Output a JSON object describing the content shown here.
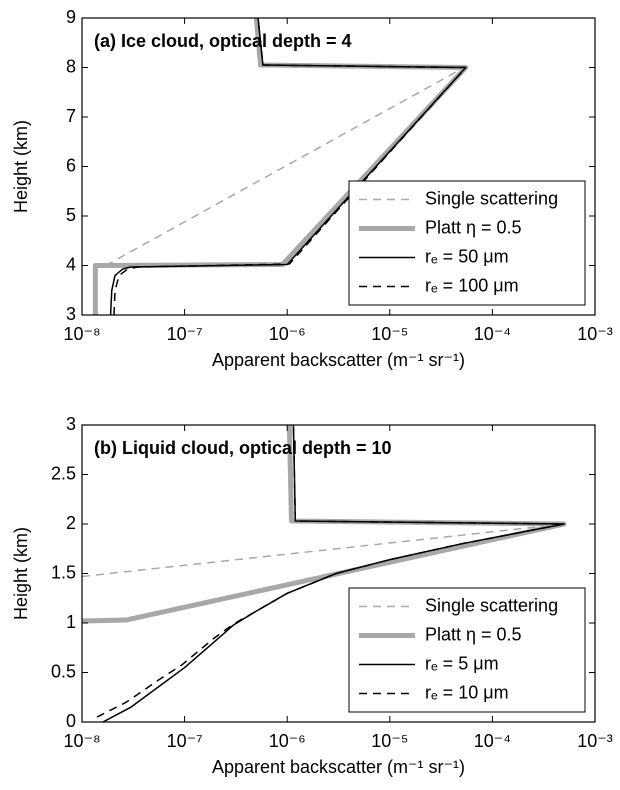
{
  "chart_data": [
    {
      "type": "line",
      "title": "(a) Ice cloud, optical depth = 4",
      "xlabel": "Apparent backscatter (m⁻¹ sr⁻¹)",
      "ylabel": "Height (km)",
      "xscale": "log",
      "xlim": [
        1e-08,
        0.001
      ],
      "ylim": [
        3,
        9
      ],
      "xticks": [
        {
          "value": 1e-08,
          "label": "10⁻⁸"
        },
        {
          "value": 1e-07,
          "label": "10⁻⁷"
        },
        {
          "value": 1e-06,
          "label": "10⁻⁶"
        },
        {
          "value": 1e-05,
          "label": "10⁻⁵"
        },
        {
          "value": 0.0001,
          "label": "10⁻⁴"
        },
        {
          "value": 0.001,
          "label": "10⁻³"
        }
      ],
      "yticks": [
        3,
        4,
        5,
        6,
        7,
        8,
        9
      ],
      "grid": false,
      "legend": "lower right",
      "series": [
        {
          "name": "Single scattering",
          "color": "#a8a8a8",
          "linestyle": "dashed",
          "linewidth": 1.5,
          "x": [
            1.7e-08,
            5.3e-05
          ],
          "values": [
            4,
            8
          ]
        },
        {
          "name": "Platt η = 0.5",
          "color": "#a8a8a8",
          "linestyle": "solid",
          "linewidth": 5,
          "x": [
            1.35e-08,
            1.35e-08,
            9e-07,
            5.5e-05,
            5.5e-07,
            5e-07
          ],
          "values": [
            3,
            4,
            4.02,
            8,
            8.05,
            9
          ]
        },
        {
          "name": "rₑ = 50 μm",
          "color": "#000000",
          "linestyle": "solid",
          "linewidth": 1.5,
          "x": [
            1.9e-08,
            1.95e-08,
            2.1e-08,
            2.5e-08,
            3e-08,
            1e-06,
            5.5e-05,
            5.8e-07,
            5.2e-07
          ],
          "values": [
            3,
            3.5,
            3.8,
            3.93,
            3.97,
            4.02,
            8,
            8.05,
            9
          ]
        },
        {
          "name": "rₑ = 100 μm",
          "color": "#000000",
          "linestyle": "dashed",
          "linewidth": 1.5,
          "x": [
            2.05e-08,
            2.1e-08,
            2.3e-08,
            2.8e-08,
            3.5e-08,
            1.05e-06,
            5.5e-05,
            5.8e-07,
            5.2e-07
          ],
          "values": [
            3,
            3.5,
            3.8,
            3.93,
            3.97,
            4.03,
            8,
            8.05,
            9
          ]
        }
      ]
    },
    {
      "type": "line",
      "title": "(b) Liquid cloud, optical depth = 10",
      "xlabel": "Apparent backscatter (m⁻¹ sr⁻¹)",
      "ylabel": "Height (km)",
      "xscale": "log",
      "xlim": [
        1e-08,
        0.001
      ],
      "ylim": [
        0,
        3
      ],
      "xticks": [
        {
          "value": 1e-08,
          "label": "10⁻⁸"
        },
        {
          "value": 1e-07,
          "label": "10⁻⁷"
        },
        {
          "value": 1e-06,
          "label": "10⁻⁶"
        },
        {
          "value": 1e-05,
          "label": "10⁻⁵"
        },
        {
          "value": 0.0001,
          "label": "10⁻⁴"
        },
        {
          "value": 0.001,
          "label": "10⁻³"
        }
      ],
      "yticks": [
        0,
        0.5,
        1,
        1.5,
        2,
        2.5,
        3
      ],
      "grid": false,
      "legend": "lower right",
      "series": [
        {
          "name": "Single scattering",
          "color": "#a8a8a8",
          "linestyle": "dashed",
          "linewidth": 1.5,
          "x": [
            1e-08,
            0.0005
          ],
          "values": [
            1.47,
            2.0
          ]
        },
        {
          "name": "Platt η = 0.5",
          "color": "#a8a8a8",
          "linestyle": "solid",
          "linewidth": 5,
          "x": [
            1e-08,
            2.7e-08,
            0.0005,
            1.1e-06,
            1.05e-06
          ],
          "values": [
            1.02,
            1.03,
            2.0,
            2.03,
            3
          ]
        },
        {
          "name": "rₑ = 5 μm",
          "color": "#000000",
          "linestyle": "solid",
          "linewidth": 1.5,
          "x": [
            1.6e-08,
            3e-08,
            6e-08,
            1e-07,
            2e-07,
            3e-07,
            5e-07,
            1e-06,
            3e-06,
            1e-05,
            5e-05,
            0.0002,
            0.0005,
            1.2e-06,
            1.15e-06
          ],
          "values": [
            0,
            0.15,
            0.38,
            0.55,
            0.82,
            0.98,
            1.12,
            1.3,
            1.5,
            1.64,
            1.8,
            1.92,
            2.0,
            2.03,
            3
          ]
        },
        {
          "name": "rₑ = 10 μm",
          "color": "#000000",
          "linestyle": "dashed",
          "linewidth": 1.5,
          "x": [
            1.4e-08,
            2.7e-08,
            5.5e-08,
            9.5e-08,
            1.9e-07,
            3e-07,
            5e-07,
            1e-06,
            3e-06,
            1e-05,
            5e-05,
            0.0002,
            0.0005,
            1.2e-06,
            1.15e-06
          ],
          "values": [
            0.05,
            0.2,
            0.42,
            0.58,
            0.84,
            0.99,
            1.12,
            1.3,
            1.5,
            1.64,
            1.8,
            1.92,
            2.0,
            2.03,
            3
          ]
        }
      ]
    }
  ]
}
